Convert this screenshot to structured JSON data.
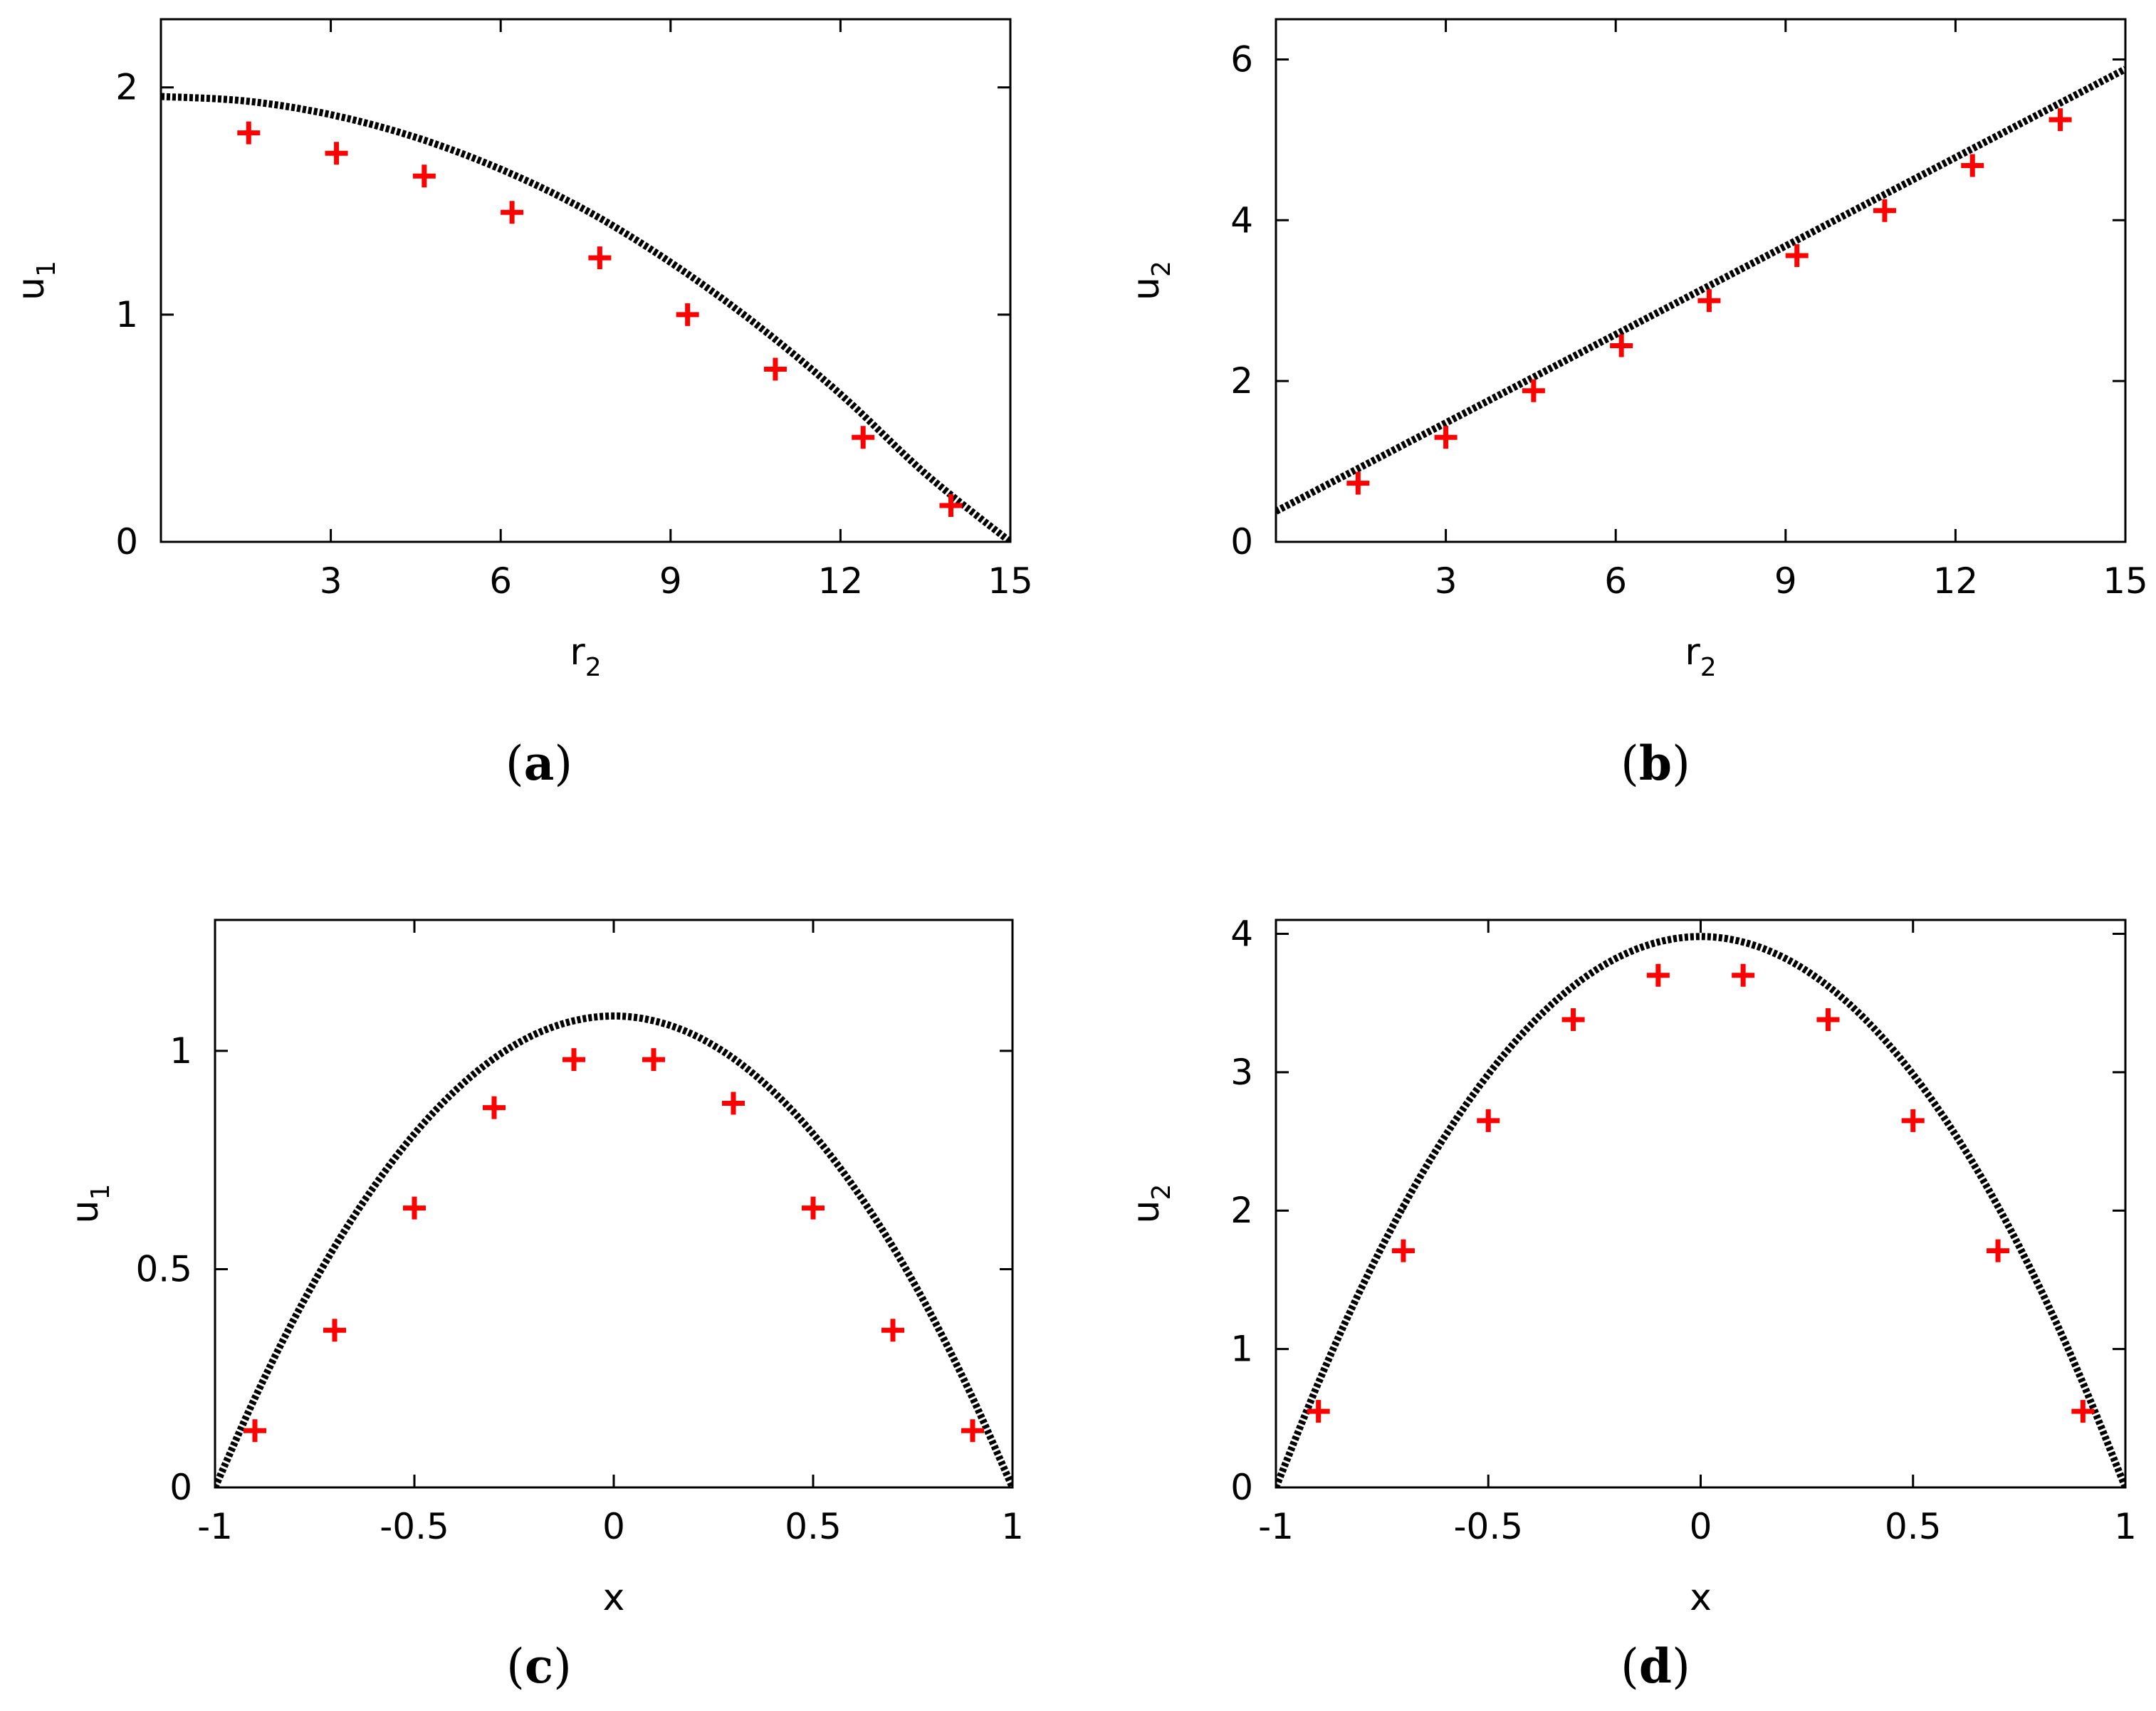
{
  "colors": {
    "markers": "#ff0000",
    "curve": "#000000"
  },
  "chart_data": [
    {
      "id": "a",
      "type": "line",
      "panel_label": "a",
      "xlabel": "r",
      "xlabel_sub": "2",
      "ylabel": "u",
      "ylabel_sub": "1",
      "xlim": [
        0,
        15
      ],
      "ylim": [
        0,
        2.3
      ],
      "xticks": [
        3,
        6,
        9,
        12,
        15
      ],
      "xtick_labels": [
        "3",
        "6",
        "9",
        "12",
        "15"
      ],
      "yticks": [
        0,
        1,
        2
      ],
      "ytick_labels": [
        "0",
        "1",
        "2"
      ],
      "grid": false,
      "legend": "none",
      "series": [
        {
          "style": "dotted-black-line",
          "x": [
            0,
            1.5,
            3,
            4.5,
            6,
            7.5,
            9,
            10.5,
            12,
            13.5,
            15
          ],
          "y": [
            1.96,
            1.94,
            1.88,
            1.78,
            1.64,
            1.46,
            1.23,
            0.96,
            0.65,
            0.3,
            0.0
          ]
        },
        {
          "style": "red-plus-markers",
          "x": [
            1.55,
            3.1,
            4.65,
            6.2,
            7.75,
            9.3,
            10.85,
            12.4,
            13.95
          ],
          "y": [
            1.8,
            1.71,
            1.61,
            1.45,
            1.25,
            1.0,
            0.76,
            0.46,
            0.16
          ]
        }
      ]
    },
    {
      "id": "b",
      "type": "line",
      "panel_label": "b",
      "xlabel": "r",
      "xlabel_sub": "2",
      "ylabel": "u",
      "ylabel_sub": "2",
      "xlim": [
        0,
        15
      ],
      "ylim": [
        0,
        6.5
      ],
      "xticks": [
        3,
        6,
        9,
        12,
        15
      ],
      "xtick_labels": [
        "3",
        "6",
        "9",
        "12",
        "15"
      ],
      "yticks": [
        0,
        2,
        4,
        6
      ],
      "ytick_labels": [
        "0",
        "2",
        "4",
        "6"
      ],
      "grid": false,
      "legend": "none",
      "series": [
        {
          "style": "dotted-black-line",
          "x": [
            0,
            15
          ],
          "y": [
            0.38,
            5.88
          ]
        },
        {
          "style": "red-plus-markers",
          "x": [
            1.45,
            3.0,
            4.55,
            6.1,
            7.65,
            9.2,
            10.75,
            12.3,
            13.85
          ],
          "y": [
            0.73,
            1.3,
            1.88,
            2.44,
            3.0,
            3.56,
            4.12,
            4.68,
            5.25
          ]
        }
      ]
    },
    {
      "id": "c",
      "type": "line",
      "panel_label": "c",
      "xlabel": "x",
      "xlabel_sub": "",
      "ylabel": "u",
      "ylabel_sub": "1",
      "xlim": [
        -1,
        1
      ],
      "ylim": [
        0,
        1.3
      ],
      "xticks": [
        -1,
        -0.5,
        0,
        0.5,
        1
      ],
      "xtick_labels": [
        "-1",
        "-0.5",
        "0",
        "0.5",
        "1"
      ],
      "yticks": [
        0,
        0.5,
        1
      ],
      "ytick_labels": [
        "0",
        "0.5",
        "1"
      ],
      "grid": false,
      "legend": "none",
      "series": [
        {
          "style": "dotted-black-line",
          "x": [
            -1,
            -0.9,
            -0.8,
            -0.7,
            -0.6,
            -0.5,
            -0.4,
            -0.3,
            -0.2,
            -0.1,
            0,
            0.1,
            0.2,
            0.3,
            0.4,
            0.5,
            0.6,
            0.7,
            0.8,
            0.9,
            1
          ],
          "y": [
            0,
            0.205,
            0.389,
            0.551,
            0.691,
            0.81,
            0.907,
            0.983,
            1.037,
            1.069,
            1.08,
            1.069,
            1.037,
            0.983,
            0.907,
            0.81,
            0.691,
            0.551,
            0.389,
            0.205,
            0
          ]
        },
        {
          "style": "red-plus-markers",
          "x": [
            -0.9,
            -0.7,
            -0.5,
            -0.3,
            -0.1,
            0.1,
            0.3,
            0.5,
            0.7,
            0.9
          ],
          "y": [
            0.13,
            0.36,
            0.64,
            0.87,
            0.98,
            0.98,
            0.88,
            0.64,
            0.36,
            0.13
          ]
        }
      ]
    },
    {
      "id": "d",
      "type": "line",
      "panel_label": "d",
      "xlabel": "x",
      "xlabel_sub": "",
      "ylabel": "u",
      "ylabel_sub": "2",
      "xlim": [
        -1,
        1
      ],
      "ylim": [
        0,
        4.1
      ],
      "xticks": [
        -1,
        -0.5,
        0,
        0.5,
        1
      ],
      "xtick_labels": [
        "-1",
        "-0.5",
        "0",
        "0.5",
        "1"
      ],
      "yticks": [
        0,
        1,
        2,
        3,
        4
      ],
      "ytick_labels": [
        "0",
        "1",
        "2",
        "3",
        "4"
      ],
      "grid": false,
      "legend": "none",
      "series": [
        {
          "style": "dotted-black-line",
          "x": [
            -1,
            -0.9,
            -0.8,
            -0.7,
            -0.6,
            -0.5,
            -0.4,
            -0.3,
            -0.2,
            -0.1,
            0,
            0.1,
            0.2,
            0.3,
            0.4,
            0.5,
            0.6,
            0.7,
            0.8,
            0.9,
            1
          ],
          "y": [
            0,
            0.756,
            1.433,
            2.03,
            2.547,
            2.985,
            3.343,
            3.622,
            3.821,
            3.94,
            3.98,
            3.94,
            3.821,
            3.622,
            3.343,
            2.985,
            2.547,
            2.03,
            1.433,
            0.756,
            0
          ]
        },
        {
          "style": "red-plus-markers",
          "x": [
            -0.9,
            -0.7,
            -0.5,
            -0.3,
            -0.1,
            0.1,
            0.3,
            0.5,
            0.7,
            0.9
          ],
          "y": [
            0.55,
            1.71,
            2.65,
            3.38,
            3.7,
            3.7,
            3.38,
            2.65,
            1.71,
            0.55
          ]
        }
      ]
    }
  ]
}
